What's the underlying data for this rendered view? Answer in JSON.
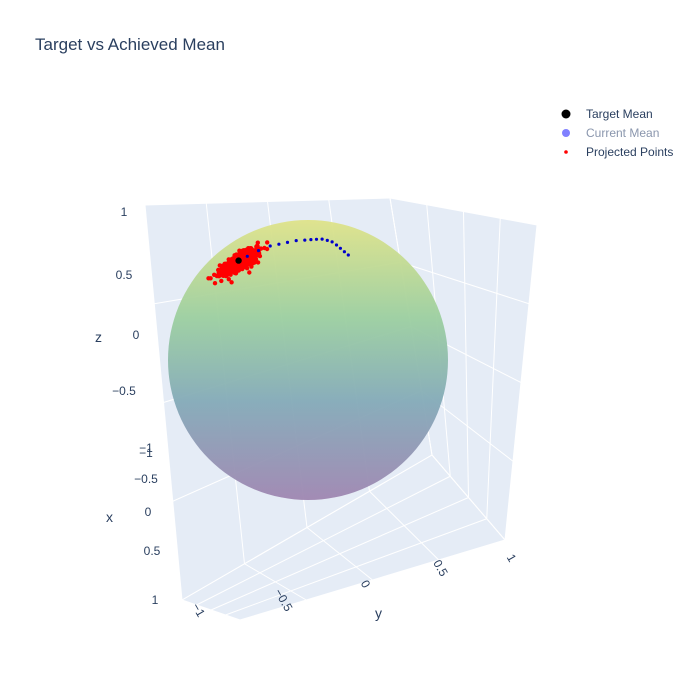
{
  "chart_data": {
    "type": "scatter",
    "title": "Target vs Achieved Mean",
    "axes": {
      "x": {
        "label": "x",
        "ticks": [
          "1",
          "0.5",
          "0",
          "−0.5",
          "−1"
        ],
        "range": [
          -1,
          1
        ]
      },
      "y": {
        "label": "y",
        "ticks": [
          "−1",
          "−0.5",
          "0",
          "0.5",
          "1"
        ],
        "range": [
          -1,
          1
        ]
      },
      "z": {
        "label": "z",
        "ticks": [
          "1",
          "0.5",
          "0",
          "−0.5",
          "−1"
        ],
        "range": [
          -1,
          1
        ]
      }
    },
    "surface": {
      "type": "unit sphere",
      "colorscale": "viridis",
      "opacity": 0.5
    },
    "legend": {
      "placement": "top-right",
      "entries": [
        {
          "name": "Target Mean",
          "color": "#000000",
          "marker": "large-dot"
        },
        {
          "name": "Current Mean",
          "color": "#8080ff",
          "marker": "dot"
        },
        {
          "name": "Projected Points",
          "color": "#ff0000",
          "marker": "small-dot"
        }
      ]
    },
    "series": [
      {
        "name": "Target Mean",
        "color": "#000000",
        "points": [
          [
            0.35,
            -0.42,
            0.84
          ]
        ]
      },
      {
        "name": "Current Mean",
        "color": "#0000cc",
        "points": [
          [
            0.33,
            -0.36,
            0.87
          ],
          [
            0.31,
            -0.28,
            0.91
          ],
          [
            0.28,
            -0.2,
            0.94
          ],
          [
            0.26,
            -0.14,
            0.95
          ],
          [
            0.24,
            -0.08,
            0.96
          ],
          [
            0.22,
            -0.02,
            0.97
          ],
          [
            0.2,
            0.04,
            0.97
          ],
          [
            0.18,
            0.08,
            0.97
          ],
          [
            0.17,
            0.12,
            0.97
          ],
          [
            0.16,
            0.16,
            0.97
          ],
          [
            0.16,
            0.2,
            0.96
          ],
          [
            0.17,
            0.24,
            0.95
          ],
          [
            0.19,
            0.28,
            0.93
          ],
          [
            0.22,
            0.32,
            0.91
          ],
          [
            0.25,
            0.36,
            0.89
          ],
          [
            0.28,
            0.4,
            0.87
          ]
        ]
      },
      {
        "name": "Projected Points",
        "color": "#ff0000",
        "center": [
          0.35,
          -0.42,
          0.84
        ],
        "spread": 0.09,
        "count": 420
      }
    ]
  }
}
